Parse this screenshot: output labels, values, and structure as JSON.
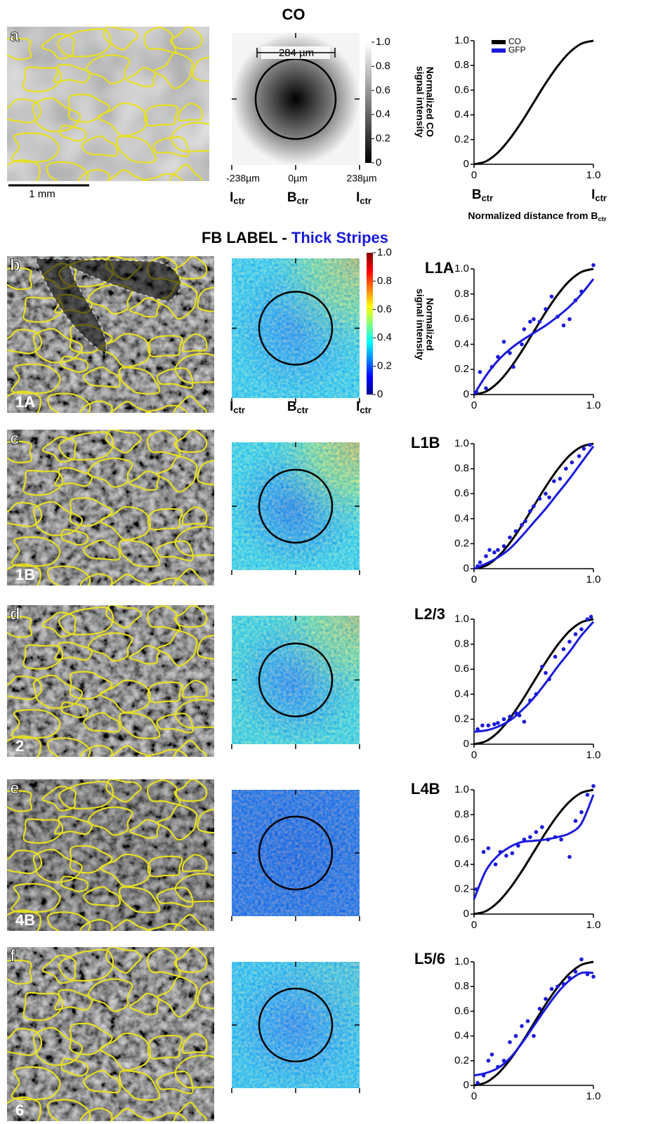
{
  "title": "CO",
  "section_title": {
    "prefix": "FB LABEL - ",
    "highlight": "Thick Stripes"
  },
  "images": [
    {
      "letter": "a",
      "scale_bar": "1 mm"
    },
    {
      "letter": "b",
      "layer": "1A"
    },
    {
      "letter": "c",
      "layer": "1B"
    },
    {
      "letter": "d",
      "layer": "2"
    },
    {
      "letter": "e",
      "layer": "4B"
    },
    {
      "letter": "f",
      "layer": "6"
    }
  ],
  "heatmaps": {
    "scale_label": "284 µm",
    "x_labels": [
      "-238µm",
      "0µm",
      "238µm"
    ],
    "anchors": [
      {
        "main": "I",
        "sub": "ctr"
      },
      {
        "main": "B",
        "sub": "ctr"
      },
      {
        "main": "I",
        "sub": "ctr"
      }
    ]
  },
  "colorbars": [
    {
      "title": [
        "Normalized CO",
        "signal intensity"
      ],
      "colormap": "gray",
      "ticks": [
        0,
        0.2,
        0.4,
        0.6,
        0.8,
        {
          "value": 1,
          "label": "1.0"
        }
      ]
    },
    {
      "title": [
        "Normalized",
        "signal intensity"
      ],
      "colormap": "jet",
      "ticks": [
        0,
        0.2,
        0.4,
        0.6,
        0.8,
        {
          "value": 1,
          "label": "1.0"
        }
      ]
    }
  ],
  "chart_data": [
    {
      "type": "line",
      "x": [
        0,
        0.1,
        0.2,
        0.3,
        0.4,
        0.5,
        0.6,
        0.7,
        0.8,
        0.9,
        1
      ],
      "xlim": [
        0,
        1
      ],
      "ylim": [
        0,
        1
      ],
      "xticks": [
        0,
        {
          "value": 1,
          "label": "1.0"
        }
      ],
      "yticks": [
        0,
        0.2,
        0.4,
        0.6,
        0.8,
        {
          "value": 1,
          "label": "1.0"
        }
      ],
      "x_anchor_labels": [
        {
          "main": "B",
          "sub": "ctr"
        },
        {
          "main": "I",
          "sub": "ctr"
        }
      ],
      "xlabel": {
        "main": "Normalized distance from B",
        "sub": "ctr"
      },
      "legend": {
        "position": "upper left",
        "entries": [
          {
            "name": "CO",
            "color": "#000000"
          },
          {
            "name": "GFP",
            "color": "#1a1adc"
          }
        ]
      },
      "series": [
        {
          "color": "#000000",
          "values": [
            0,
            0.024,
            0.095,
            0.206,
            0.345,
            0.5,
            0.655,
            0.794,
            0.905,
            0.976,
            1
          ]
        }
      ]
    },
    {
      "type": "line",
      "title": "L1A",
      "x": [
        0,
        0.1,
        0.2,
        0.3,
        0.4,
        0.5,
        0.6,
        0.7,
        0.8,
        0.9,
        1
      ],
      "xlim": [
        0,
        1
      ],
      "ylim": [
        0,
        1
      ],
      "xticks": [
        0,
        {
          "value": 1,
          "label": "1.0"
        }
      ],
      "yticks": [
        0,
        0.2,
        0.4,
        0.6,
        0.8,
        {
          "value": 1,
          "label": "1.0"
        }
      ],
      "series": [
        {
          "color": "#000000",
          "values": [
            0,
            0.024,
            0.095,
            0.206,
            0.345,
            0.5,
            0.655,
            0.794,
            0.905,
            0.976,
            1
          ]
        },
        {
          "color": "#1a1adc",
          "values": [
            0,
            0.15,
            0.27,
            0.36,
            0.43,
            0.49,
            0.55,
            0.62,
            0.7,
            0.8,
            0.92
          ]
        }
      ],
      "points": {
        "color": "#1a1adc",
        "x": [
          0.02,
          0.05,
          0.1,
          0.15,
          0.2,
          0.25,
          0.3,
          0.33,
          0.4,
          0.42,
          0.47,
          0.5,
          0.55,
          0.6,
          0.65,
          0.7,
          0.75,
          0.8,
          0.85,
          0.9,
          1
        ],
        "values": [
          0.02,
          0.18,
          0.05,
          0.22,
          0.3,
          0.42,
          0.33,
          0.22,
          0.4,
          0.52,
          0.58,
          0.6,
          0.58,
          0.68,
          0.78,
          0.62,
          0.55,
          0.6,
          0.75,
          0.82,
          1.03
        ]
      }
    },
    {
      "type": "line",
      "title": "L1B",
      "x": [
        0,
        0.1,
        0.2,
        0.3,
        0.4,
        0.5,
        0.6,
        0.7,
        0.8,
        0.9,
        1
      ],
      "xlim": [
        0,
        1
      ],
      "ylim": [
        0,
        1
      ],
      "xticks": [
        0,
        {
          "value": 1,
          "label": "1.0"
        }
      ],
      "yticks": [
        0,
        0.2,
        0.4,
        0.6,
        0.8,
        {
          "value": 1,
          "label": "1.0"
        }
      ],
      "series": [
        {
          "color": "#000000",
          "values": [
            0,
            0.024,
            0.095,
            0.206,
            0.345,
            0.5,
            0.655,
            0.794,
            0.905,
            0.976,
            1
          ]
        },
        {
          "color": "#1a1adc",
          "values": [
            0,
            0.04,
            0.09,
            0.16,
            0.26,
            0.37,
            0.48,
            0.6,
            0.72,
            0.85,
            0.98
          ]
        }
      ],
      "points": {
        "color": "#1a1adc",
        "x": [
          0.03,
          0.05,
          0.1,
          0.13,
          0.17,
          0.2,
          0.25,
          0.3,
          0.35,
          0.4,
          0.43,
          0.47,
          0.5,
          0.55,
          0.6,
          0.63,
          0.67,
          0.72,
          0.77,
          0.82,
          0.88,
          0.92,
          0.97
        ],
        "values": [
          0.02,
          0.05,
          0.1,
          0.15,
          0.13,
          0.15,
          0.18,
          0.25,
          0.3,
          0.35,
          0.38,
          0.46,
          0.5,
          0.56,
          0.6,
          0.57,
          0.7,
          0.72,
          0.8,
          0.85,
          0.9,
          0.96,
          0.99
        ]
      }
    },
    {
      "type": "line",
      "title": "L2/3",
      "x": [
        0,
        0.1,
        0.2,
        0.3,
        0.4,
        0.5,
        0.6,
        0.7,
        0.8,
        0.9,
        1
      ],
      "xlim": [
        0,
        1
      ],
      "ylim": [
        0,
        1
      ],
      "xticks": [
        0,
        {
          "value": 1,
          "label": "1.0"
        }
      ],
      "yticks": [
        0,
        0.2,
        0.4,
        0.6,
        0.8,
        {
          "value": 1,
          "label": "1.0"
        }
      ],
      "series": [
        {
          "color": "#000000",
          "values": [
            0,
            0.024,
            0.095,
            0.206,
            0.345,
            0.5,
            0.655,
            0.794,
            0.905,
            0.976,
            1
          ]
        },
        {
          "color": "#1a1adc",
          "values": [
            0.1,
            0.11,
            0.14,
            0.19,
            0.27,
            0.37,
            0.49,
            0.62,
            0.74,
            0.87,
            0.98
          ]
        }
      ],
      "points": {
        "color": "#1a1adc",
        "x": [
          0.03,
          0.07,
          0.12,
          0.17,
          0.2,
          0.25,
          0.3,
          0.35,
          0.38,
          0.42,
          0.47,
          0.52,
          0.57,
          0.6,
          0.63,
          0.68,
          0.75,
          0.8,
          0.85,
          0.9,
          0.95,
          0.98
        ],
        "values": [
          0.12,
          0.15,
          0.15,
          0.16,
          0.17,
          0.2,
          0.22,
          0.25,
          0.23,
          0.18,
          0.35,
          0.4,
          0.62,
          0.57,
          0.52,
          0.7,
          0.76,
          0.82,
          0.88,
          0.92,
          1,
          1.02
        ]
      }
    },
    {
      "type": "line",
      "title": "L4B",
      "x": [
        0,
        0.1,
        0.2,
        0.3,
        0.4,
        0.5,
        0.6,
        0.7,
        0.8,
        0.9,
        1
      ],
      "xlim": [
        0,
        1
      ],
      "ylim": [
        0,
        1
      ],
      "xticks": [
        0,
        {
          "value": 1,
          "label": "1.0"
        }
      ],
      "yticks": [
        0,
        0.2,
        0.4,
        0.6,
        0.8,
        {
          "value": 1,
          "label": "1.0"
        }
      ],
      "series": [
        {
          "color": "#000000",
          "values": [
            0,
            0.024,
            0.095,
            0.206,
            0.345,
            0.5,
            0.655,
            0.794,
            0.905,
            0.976,
            1
          ]
        },
        {
          "color": "#1a1adc",
          "values": [
            0.12,
            0.35,
            0.47,
            0.54,
            0.58,
            0.59,
            0.6,
            0.62,
            0.65,
            0.73,
            0.96
          ]
        }
      ],
      "points": {
        "color": "#1a1adc",
        "x": [
          0.02,
          0.08,
          0.12,
          0.18,
          0.22,
          0.27,
          0.32,
          0.37,
          0.42,
          0.47,
          0.52,
          0.57,
          0.62,
          0.68,
          0.73,
          0.8,
          0.85,
          0.9,
          0.95,
          1
        ],
        "values": [
          0.2,
          0.5,
          0.53,
          0.4,
          0.5,
          0.47,
          0.49,
          0.55,
          0.6,
          0.62,
          0.66,
          0.7,
          0.6,
          0.62,
          0.6,
          0.46,
          0.75,
          0.82,
          0.96,
          1.03
        ]
      }
    },
    {
      "type": "line",
      "title": "L5/6",
      "x": [
        0,
        0.1,
        0.2,
        0.3,
        0.4,
        0.5,
        0.6,
        0.7,
        0.8,
        0.9,
        1
      ],
      "xlim": [
        0,
        1
      ],
      "ylim": [
        0,
        1
      ],
      "xticks": [
        0,
        {
          "value": 1,
          "label": "1.0"
        }
      ],
      "yticks": [
        0,
        0.2,
        0.4,
        0.6,
        0.8,
        {
          "value": 1,
          "label": "1.0"
        }
      ],
      "series": [
        {
          "color": "#000000",
          "values": [
            0,
            0.024,
            0.095,
            0.206,
            0.345,
            0.5,
            0.655,
            0.794,
            0.905,
            0.976,
            1
          ]
        },
        {
          "color": "#1a1adc",
          "values": [
            0.08,
            0.1,
            0.14,
            0.22,
            0.34,
            0.48,
            0.62,
            0.75,
            0.85,
            0.91,
            0.91
          ]
        }
      ],
      "points": {
        "color": "#1a1adc",
        "x": [
          0.03,
          0.08,
          0.12,
          0.15,
          0.2,
          0.25,
          0.3,
          0.35,
          0.4,
          0.45,
          0.5,
          0.55,
          0.6,
          0.65,
          0.7,
          0.75,
          0.8,
          0.85,
          0.9,
          0.95,
          1
        ],
        "values": [
          0.02,
          0.08,
          0.2,
          0.25,
          0.15,
          0.2,
          0.35,
          0.4,
          0.48,
          0.52,
          0.4,
          0.62,
          0.7,
          0.78,
          0.8,
          0.82,
          0.87,
          0.92,
          1.02,
          0.9,
          0.88
        ]
      }
    }
  ]
}
